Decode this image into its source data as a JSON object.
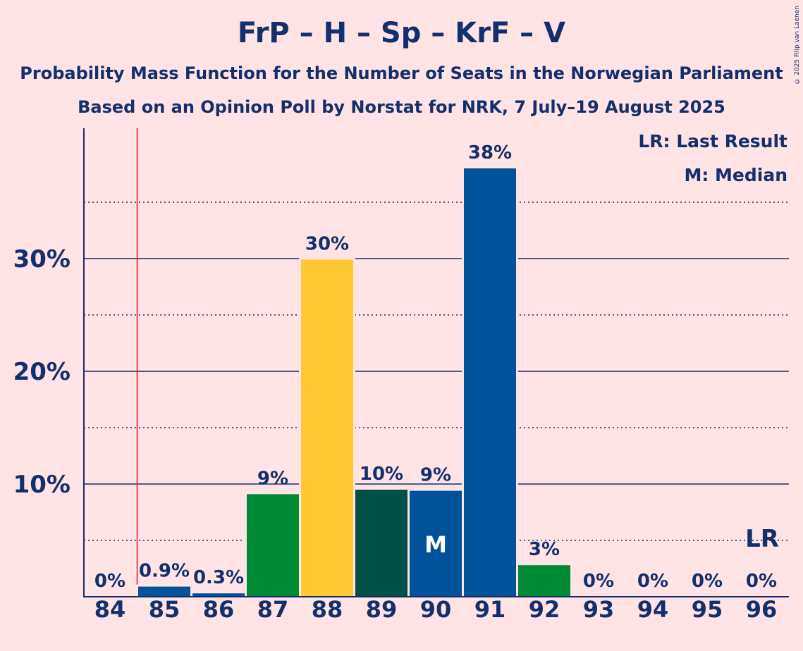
{
  "title": "FrP – H – Sp – KrF – V",
  "subtitle1": "Probability Mass Function for the Number of Seats in the Norwegian Parliament",
  "subtitle2": "Based on an Opinion Poll by Norstat for NRK, 7 July–19 August 2025",
  "copyright": "© 2025 Filip van Laenen",
  "legend": {
    "lr": "LR: Last Result",
    "median": "M: Median"
  },
  "chart_data": {
    "type": "bar",
    "categories": [
      "84",
      "85",
      "86",
      "87",
      "88",
      "89",
      "90",
      "91",
      "92",
      "93",
      "94",
      "95",
      "96"
    ],
    "values": [
      0,
      0.9,
      0.3,
      9.1,
      29.9,
      9.5,
      9.4,
      38.0,
      2.8,
      0,
      0,
      0,
      0
    ],
    "value_labels": [
      "0%",
      "0.9%",
      "0.3%",
      "9%",
      "30%",
      "10%",
      "9%",
      "38%",
      "3%",
      "0%",
      "0%",
      "0%",
      "0%"
    ],
    "bar_colors": [
      "#00529B",
      "#00529B",
      "#00529B",
      "#008A36",
      "#FFC933",
      "#005046",
      "#00529B",
      "#00529B",
      "#008A36",
      "#00529B",
      "#00529B",
      "#00529B",
      "#00529B"
    ],
    "yticks": [
      10,
      20,
      30
    ],
    "ytick_labels": [
      "10%",
      "20%",
      "30%"
    ],
    "minor_gridlines": [
      5,
      15,
      25,
      35
    ],
    "ylim": [
      0,
      41.5
    ],
    "last_result_seat": "85",
    "last_result_label": "LR",
    "last_result_line_color": "#E8141C",
    "median_seat": "90",
    "median_label": "M",
    "legend_position": "top-right"
  }
}
